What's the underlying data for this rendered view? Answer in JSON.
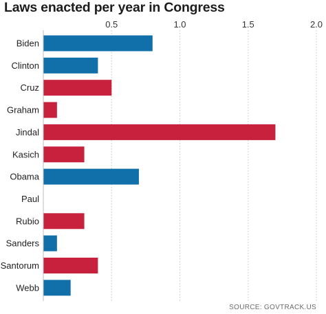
{
  "chart_data": {
    "type": "bar",
    "orientation": "horizontal",
    "title": "Laws enacted per year in Congress",
    "source": "SOURCE: GOVTRACK.US",
    "categories": [
      "Biden",
      "Clinton",
      "Cruz",
      "Graham",
      "Jindal",
      "Kasich",
      "Obama",
      "Paul",
      "Rubio",
      "Sanders",
      "Santorum",
      "Webb"
    ],
    "values": [
      0.8,
      0.4,
      0.5,
      0.1,
      1.7,
      0.3,
      0.7,
      0.0,
      0.3,
      0.1,
      0.4,
      0.2
    ],
    "party": [
      "D",
      "D",
      "R",
      "R",
      "R",
      "R",
      "D",
      "R",
      "R",
      "D",
      "R",
      "D"
    ],
    "xlim": [
      0,
      2.0
    ],
    "xticks": [
      0.5,
      1.0,
      1.5,
      2.0
    ],
    "xtick_labels": [
      "0.5",
      "1.0",
      "1.5",
      "2.0"
    ],
    "xlabel": "",
    "ylabel": "",
    "grid": true,
    "colors": {
      "D": "#1170aa",
      "R": "#c8213e"
    }
  }
}
